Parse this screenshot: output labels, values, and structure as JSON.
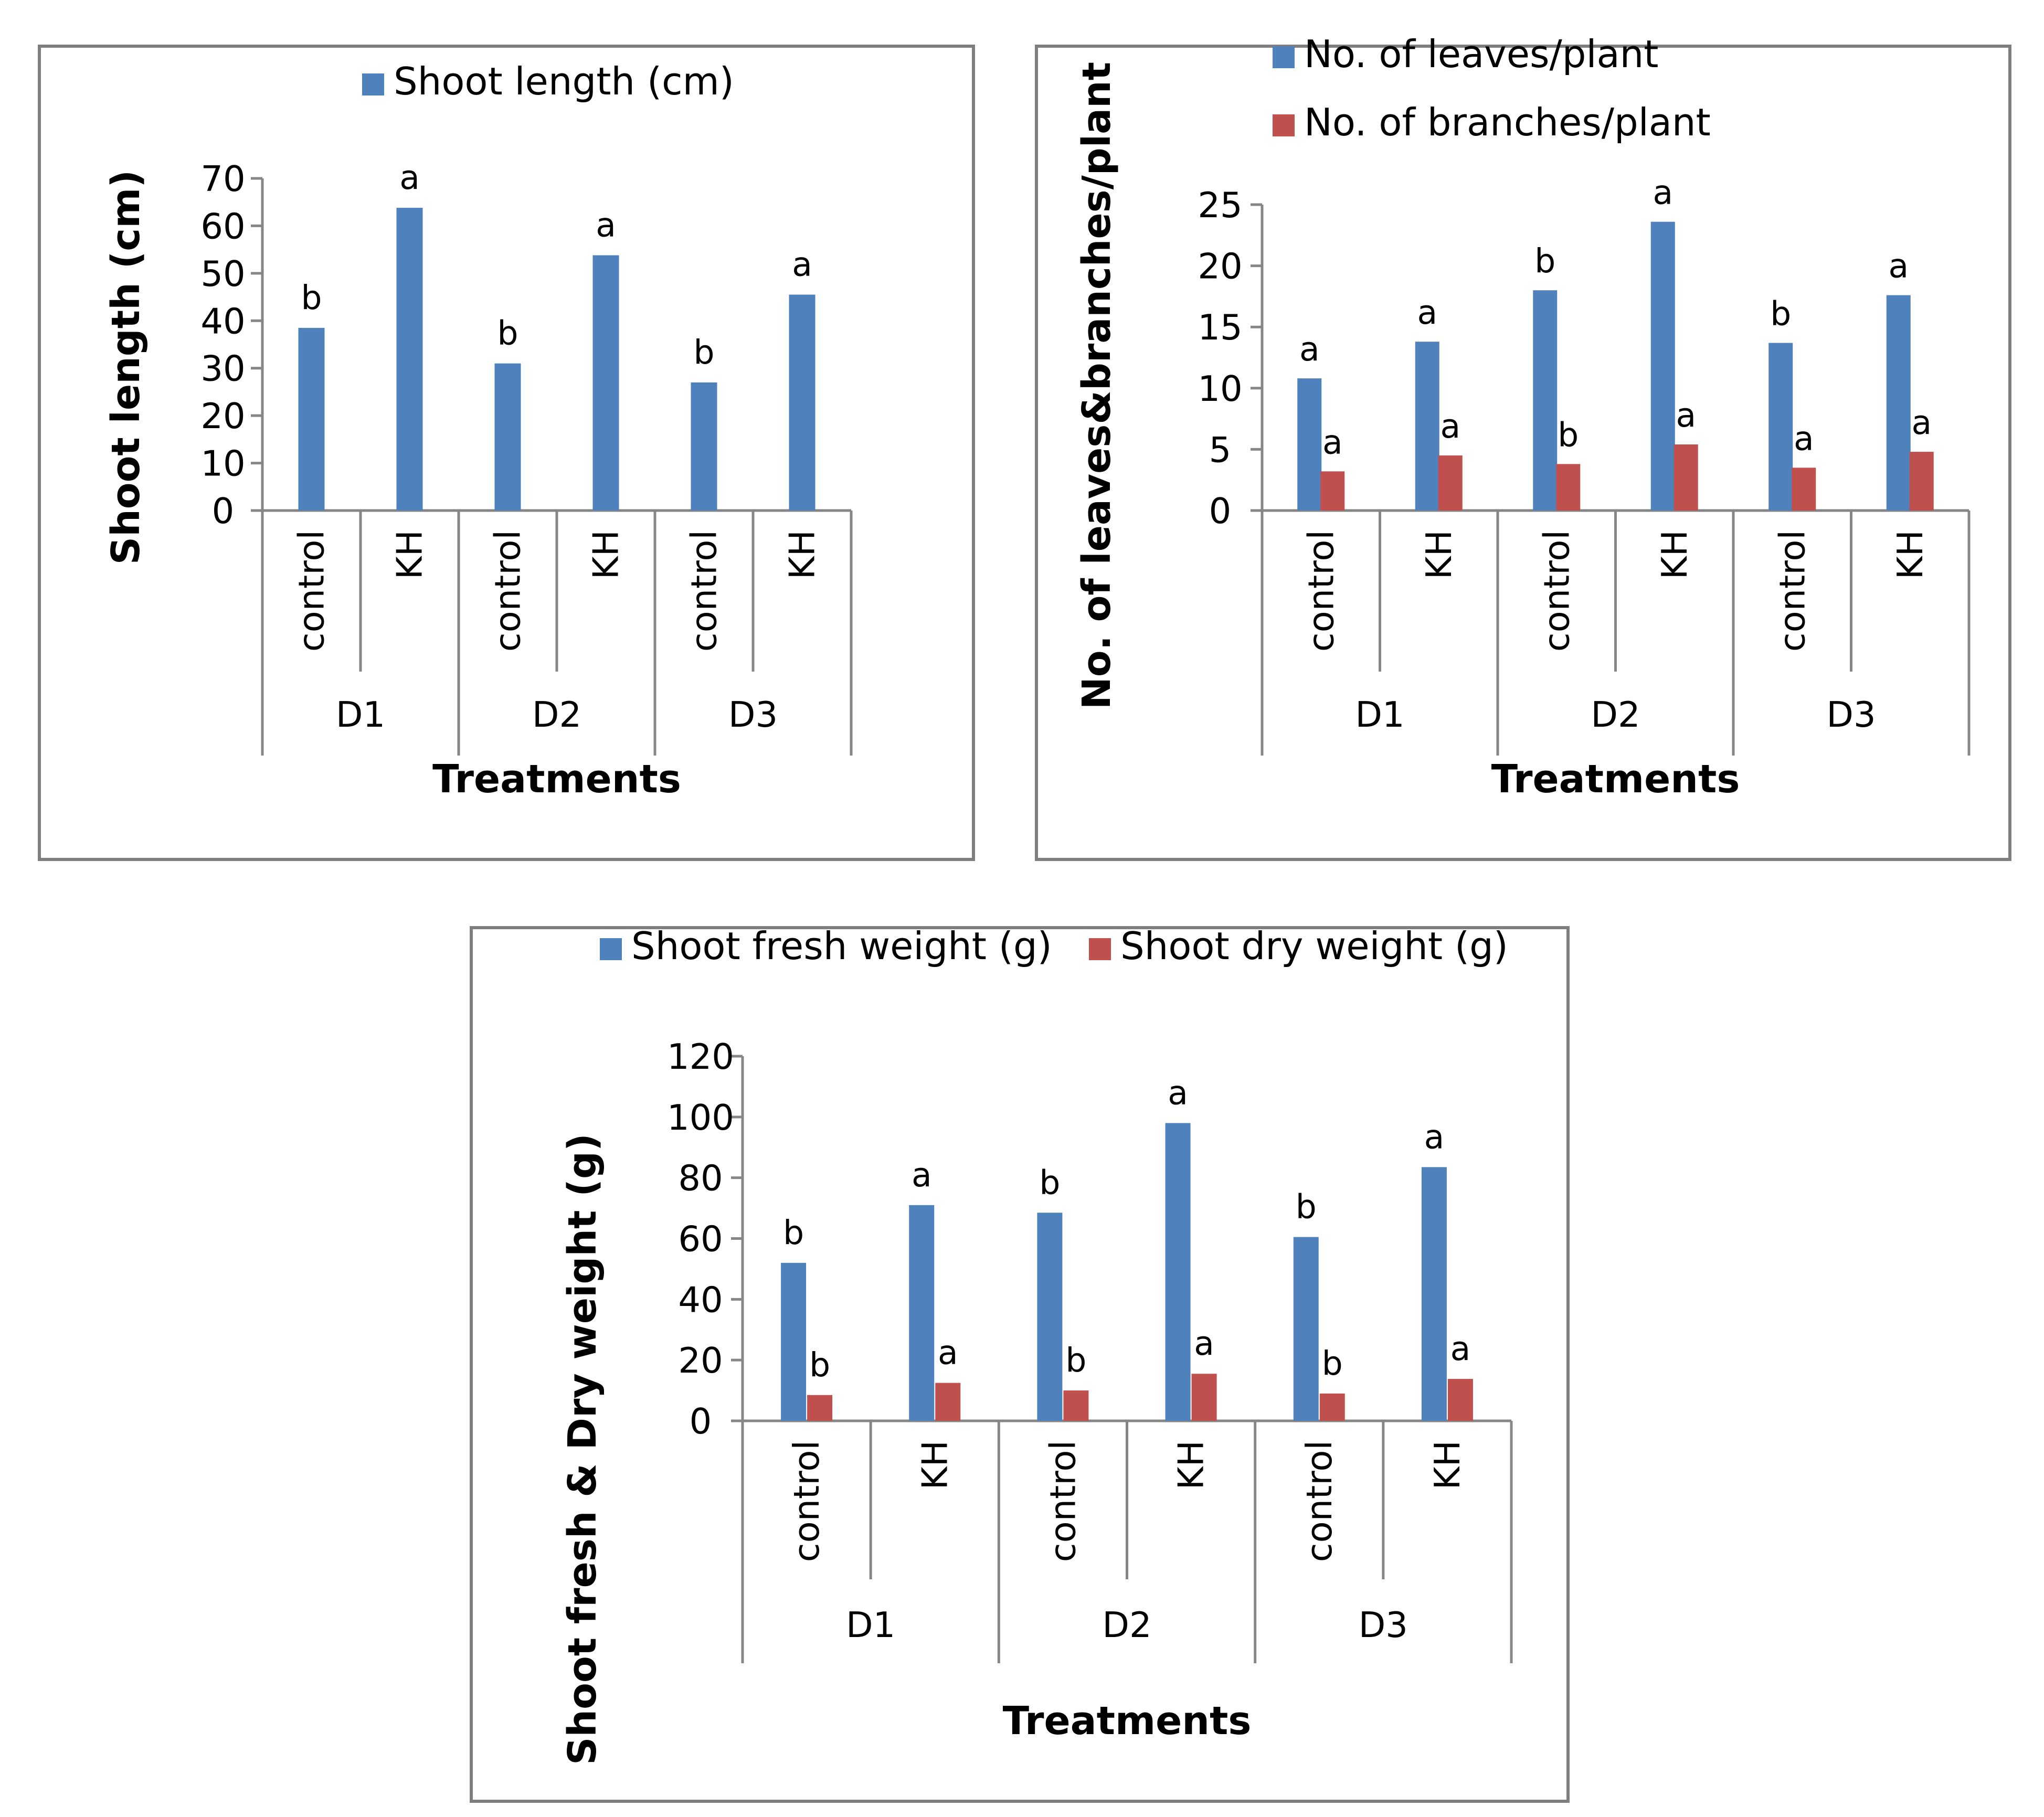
{
  "colors": {
    "blue": "#4F81BD",
    "red": "#C0504D",
    "frame": "#7f7f7f",
    "axis": "#868686"
  },
  "chart_data": [
    {
      "id": "chart-shoot-length",
      "type": "bar",
      "groups": [
        "D1",
        "D2",
        "D3"
      ],
      "categories": [
        "control",
        "KH",
        "control",
        "KH",
        "control",
        "KH"
      ],
      "series": [
        {
          "name": "Shoot length (cm)",
          "color": "#4F81BD",
          "values": [
            38.5,
            63.8,
            31,
            53.8,
            27,
            45.5
          ],
          "labels": [
            "b",
            "a",
            "b",
            "a",
            "b",
            "a"
          ]
        }
      ],
      "ylabel": "Shoot length (cm)",
      "xlabel": "Treatments",
      "ylim": [
        0,
        70
      ],
      "yticks": [
        0,
        10,
        20,
        30,
        40,
        50,
        60,
        70
      ]
    },
    {
      "id": "chart-leaves-branches",
      "type": "bar",
      "groups": [
        "D1",
        "D2",
        "D3"
      ],
      "categories": [
        "control",
        "KH",
        "control",
        "KH",
        "control",
        "KH"
      ],
      "series": [
        {
          "name": "No. of leaves/plant",
          "color": "#4F81BD",
          "values": [
            10.8,
            13.8,
            18,
            23.6,
            13.7,
            17.6
          ],
          "labels": [
            "a",
            "a",
            "b",
            "a",
            "b",
            "a"
          ]
        },
        {
          "name": "No. of branches/plant",
          "color": "#C0504D",
          "values": [
            3.2,
            4.5,
            3.8,
            5.4,
            3.5,
            4.8
          ],
          "labels": [
            "a",
            "a",
            "b",
            "a",
            "a",
            "a"
          ]
        }
      ],
      "ylabel": "No. of leaves&branches/plant",
      "xlabel": "Treatments",
      "ylim": [
        0,
        25
      ],
      "yticks": [
        0,
        5,
        10,
        15,
        20,
        25
      ]
    },
    {
      "id": "chart-fresh-dry-weight",
      "type": "bar",
      "groups": [
        "D1",
        "D2",
        "D3"
      ],
      "categories": [
        "control",
        "KH",
        "control",
        "KH",
        "control",
        "KH"
      ],
      "series": [
        {
          "name": "Shoot fresh weight (g)",
          "color": "#4F81BD",
          "values": [
            52,
            71,
            68.5,
            98,
            60.5,
            83.5
          ],
          "labels": [
            "b",
            "a",
            "b",
            "a",
            "b",
            "a"
          ]
        },
        {
          "name": "Shoot dry weight (g)",
          "color": "#C0504D",
          "values": [
            8.5,
            12.5,
            10,
            15.5,
            9,
            13.8
          ],
          "labels": [
            "b",
            "a",
            "b",
            "a",
            "b",
            "a"
          ]
        }
      ],
      "ylabel": "Shoot fresh & Dry weight (g)",
      "xlabel": "Treatments",
      "ylim": [
        0,
        120
      ],
      "yticks": [
        0,
        20,
        40,
        60,
        80,
        100,
        120
      ]
    }
  ]
}
